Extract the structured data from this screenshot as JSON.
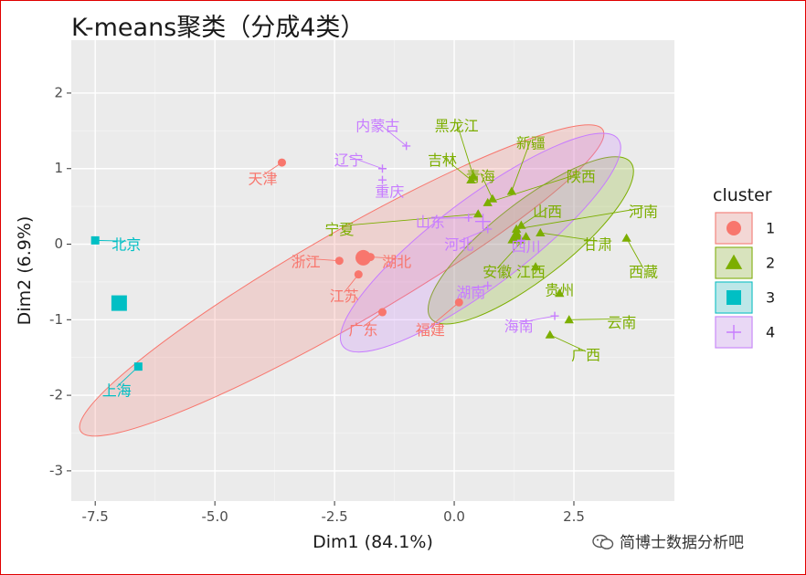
{
  "title": "K-means聚类（分成4类）",
  "watermark": "简博士数据分析吧",
  "chart_data": {
    "type": "scatter",
    "xlabel": "Dim1 (84.1%)",
    "ylabel": "Dim2 (6.9%)",
    "xlim": [
      -8.0,
      4.6
    ],
    "ylim": [
      -3.4,
      2.7
    ],
    "xticks": [
      -7.5,
      -5.0,
      -2.5,
      0.0,
      2.5
    ],
    "xtick_labels": [
      "-7.5",
      "-5.0",
      "-2.5",
      "0.0",
      "2.5"
    ],
    "yticks": [
      -3,
      -2,
      -1,
      0,
      1,
      2
    ],
    "ytick_labels": [
      "-3",
      "-2",
      "-1",
      "0",
      "1",
      "2"
    ],
    "grid": true,
    "legend": {
      "title": "cluster",
      "position": "right"
    },
    "clusters": [
      {
        "name": "1",
        "color": "#F8766D",
        "shape": "circle",
        "centroid": [
          -1.9,
          -0.18
        ],
        "ellipse": {
          "cx": -2.35,
          "cy": -0.48,
          "rx": 6.3,
          "ry": 0.95,
          "angle_deg": -30
        },
        "points": [
          {
            "label": "天津",
            "x": -3.6,
            "y": 1.08,
            "lx": -4.0,
            "ly": 0.85
          },
          {
            "label": "浙江",
            "x": -2.4,
            "y": -0.22,
            "lx": -3.1,
            "ly": -0.25
          },
          {
            "label": "湖北",
            "x": -1.75,
            "y": -0.17,
            "lx": -1.2,
            "ly": -0.25
          },
          {
            "label": "江苏",
            "x": -2.0,
            "y": -0.4,
            "lx": -2.3,
            "ly": -0.7
          },
          {
            "label": "广东",
            "x": -1.5,
            "y": -0.9,
            "lx": -1.9,
            "ly": -1.15
          },
          {
            "label": "福建",
            "x": 0.1,
            "y": -0.77,
            "lx": -0.5,
            "ly": -1.15
          }
        ]
      },
      {
        "name": "2",
        "color": "#7CAE00",
        "shape": "triangle",
        "centroid": [
          1.3,
          0.1
        ],
        "ellipse": {
          "cx": 1.6,
          "cy": 0.05,
          "rx": 2.65,
          "ry": 0.8,
          "angle_deg": -38
        },
        "points": [
          {
            "label": "黑龙江",
            "x": 0.4,
            "y": 0.9,
            "lx": 0.05,
            "ly": 1.55
          },
          {
            "label": "吉林",
            "x": 0.35,
            "y": 0.85,
            "lx": -0.25,
            "ly": 1.1
          },
          {
            "label": "新疆",
            "x": 1.2,
            "y": 0.7,
            "lx": 1.6,
            "ly": 1.32
          },
          {
            "label": "青海",
            "x": 0.8,
            "y": 0.6,
            "lx": 0.55,
            "ly": 0.88
          },
          {
            "label": "陕西",
            "x": 0.7,
            "y": 0.55,
            "lx": 2.65,
            "ly": 0.88
          },
          {
            "label": "山西",
            "x": 1.4,
            "y": 0.25,
            "lx": 1.95,
            "ly": 0.42
          },
          {
            "label": "河南",
            "x": 1.3,
            "y": 0.2,
            "lx": 3.95,
            "ly": 0.42
          },
          {
            "label": "宁夏",
            "x": 0.5,
            "y": 0.4,
            "lx": -2.4,
            "ly": 0.18
          },
          {
            "label": "甘肃",
            "x": 1.8,
            "y": 0.15,
            "lx": 3.0,
            "ly": -0.02
          },
          {
            "label": "西藏",
            "x": 3.6,
            "y": 0.08,
            "lx": 3.95,
            "ly": -0.38
          },
          {
            "label": "江西",
            "x": 1.7,
            "y": -0.3,
            "lx": 1.6,
            "ly": -0.38
          },
          {
            "label": "贵州",
            "x": 2.2,
            "y": -0.65,
            "lx": 2.2,
            "ly": -0.62
          },
          {
            "label": "云南",
            "x": 2.4,
            "y": -1.0,
            "lx": 3.5,
            "ly": -1.05
          },
          {
            "label": "广西",
            "x": 2.0,
            "y": -1.2,
            "lx": 2.75,
            "ly": -1.48
          },
          {
            "label": "安徽",
            "x": 1.5,
            "y": 0.1,
            "lx": 0.9,
            "ly": -0.38
          }
        ]
      },
      {
        "name": "3",
        "color": "#00BFC4",
        "shape": "square",
        "centroid": [
          -7.0,
          -0.78
        ],
        "ellipse": null,
        "points": [
          {
            "label": "北京",
            "x": -7.5,
            "y": 0.05,
            "lx": -6.85,
            "ly": -0.02
          },
          {
            "label": "上海",
            "x": -6.6,
            "y": -1.62,
            "lx": -7.05,
            "ly": -1.95
          }
        ]
      },
      {
        "name": "4",
        "color": "#C77CFF",
        "shape": "cross",
        "centroid": [
          0.6,
          0.3
        ],
        "ellipse": {
          "cx": 0.55,
          "cy": 0.02,
          "rx": 3.6,
          "ry": 0.92,
          "angle_deg": -37
        },
        "points": [
          {
            "label": "内蒙古",
            "x": -1.0,
            "y": 1.3,
            "lx": -1.6,
            "ly": 1.55
          },
          {
            "label": "辽宁",
            "x": -1.5,
            "y": 1.0,
            "lx": -2.2,
            "ly": 1.1
          },
          {
            "label": "重庆",
            "x": -1.5,
            "y": 0.85,
            "lx": -1.35,
            "ly": 0.68
          },
          {
            "label": "山东",
            "x": 0.3,
            "y": 0.35,
            "lx": -0.5,
            "ly": 0.28
          },
          {
            "label": "河北",
            "x": 0.7,
            "y": 0.2,
            "lx": 0.1,
            "ly": -0.02
          },
          {
            "label": "四川",
            "x": 1.4,
            "y": 0.05,
            "lx": 1.5,
            "ly": -0.05
          },
          {
            "label": "湖南",
            "x": 0.7,
            "y": -0.55,
            "lx": 0.35,
            "ly": -0.65
          },
          {
            "label": "海南",
            "x": 2.1,
            "y": -0.95,
            "lx": 1.35,
            "ly": -1.1
          }
        ]
      }
    ]
  }
}
